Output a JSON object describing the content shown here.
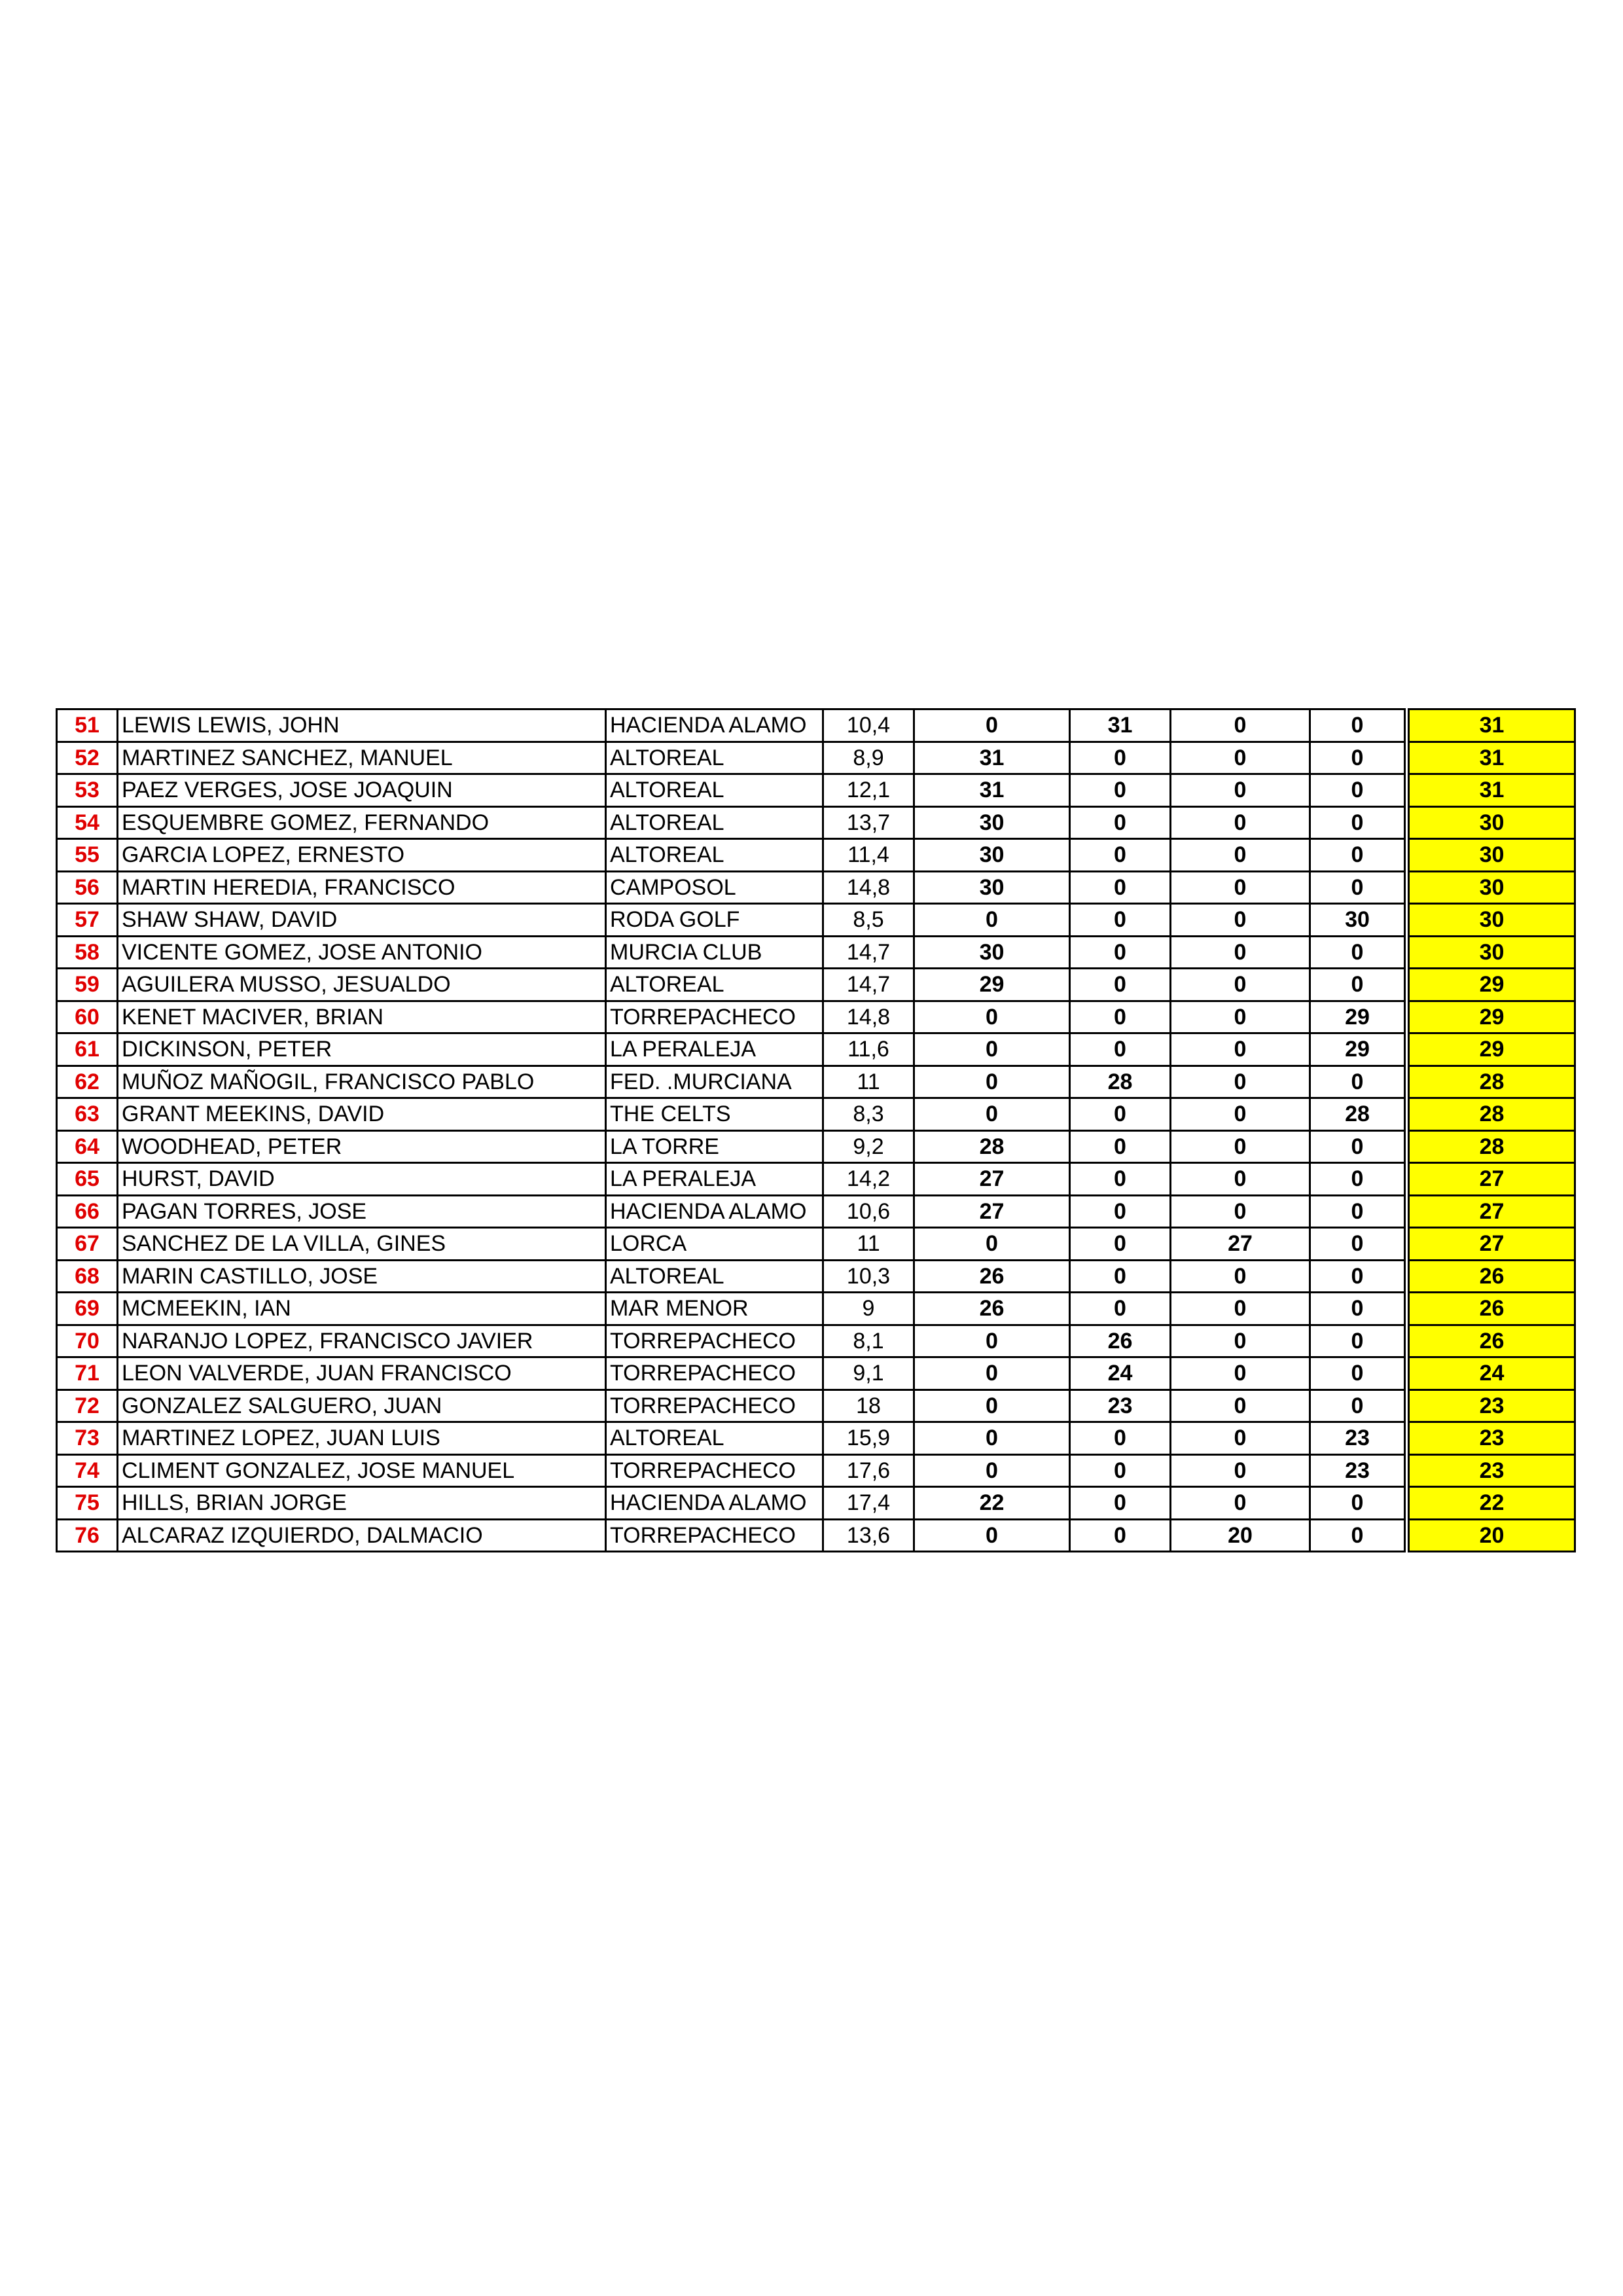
{
  "highlight_color": "#ffff00",
  "rank_color": "#e00000",
  "rows": [
    {
      "rank": "51",
      "name": "LEWIS LEWIS, JOHN",
      "club": "HACIENDA ALAMO",
      "hcp": "10,4",
      "s1": "0",
      "s2": "31",
      "s3": "0",
      "s4": "0",
      "total": "31"
    },
    {
      "rank": "52",
      "name": "MARTINEZ SANCHEZ, MANUEL",
      "club": "ALTOREAL",
      "hcp": "8,9",
      "s1": "31",
      "s2": "0",
      "s3": "0",
      "s4": "0",
      "total": "31"
    },
    {
      "rank": "53",
      "name": "PAEZ VERGES, JOSE JOAQUIN",
      "club": "ALTOREAL",
      "hcp": "12,1",
      "s1": "31",
      "s2": "0",
      "s3": "0",
      "s4": "0",
      "total": "31"
    },
    {
      "rank": "54",
      "name": "ESQUEMBRE GOMEZ, FERNANDO",
      "club": "ALTOREAL",
      "hcp": "13,7",
      "s1": "30",
      "s2": "0",
      "s3": "0",
      "s4": "0",
      "total": "30"
    },
    {
      "rank": "55",
      "name": "GARCIA LOPEZ, ERNESTO",
      "club": "ALTOREAL",
      "hcp": "11,4",
      "s1": "30",
      "s2": "0",
      "s3": "0",
      "s4": "0",
      "total": "30"
    },
    {
      "rank": "56",
      "name": "MARTIN HEREDIA, FRANCISCO",
      "club": "CAMPOSOL",
      "hcp": "14,8",
      "s1": "30",
      "s2": "0",
      "s3": "0",
      "s4": "0",
      "total": "30"
    },
    {
      "rank": "57",
      "name": "SHAW SHAW, DAVID",
      "club": "RODA GOLF",
      "hcp": "8,5",
      "s1": "0",
      "s2": "0",
      "s3": "0",
      "s4": "30",
      "total": "30"
    },
    {
      "rank": "58",
      "name": "VICENTE GOMEZ, JOSE ANTONIO",
      "club": "MURCIA CLUB",
      "hcp": "14,7",
      "s1": "30",
      "s2": "0",
      "s3": "0",
      "s4": "0",
      "total": "30"
    },
    {
      "rank": "59",
      "name": "AGUILERA MUSSO, JESUALDO",
      "club": "ALTOREAL",
      "hcp": "14,7",
      "s1": "29",
      "s2": "0",
      "s3": "0",
      "s4": "0",
      "total": "29"
    },
    {
      "rank": "60",
      "name": "KENET MACIVER, BRIAN",
      "club": "TORREPACHECO",
      "hcp": "14,8",
      "s1": "0",
      "s2": "0",
      "s3": "0",
      "s4": "29",
      "total": "29"
    },
    {
      "rank": "61",
      "name": "DICKINSON, PETER",
      "club": "LA PERALEJA",
      "hcp": "11,6",
      "s1": "0",
      "s2": "0",
      "s3": "0",
      "s4": "29",
      "total": "29"
    },
    {
      "rank": "62",
      "name": "MUÑOZ MAÑOGIL, FRANCISCO PABLO",
      "club": "FED. .MURCIANA",
      "hcp": "11",
      "s1": "0",
      "s2": "28",
      "s3": "0",
      "s4": "0",
      "total": "28"
    },
    {
      "rank": "63",
      "name": "GRANT MEEKINS, DAVID",
      "club": "THE CELTS",
      "hcp": "8,3",
      "s1": "0",
      "s2": "0",
      "s3": "0",
      "s4": "28",
      "total": "28"
    },
    {
      "rank": "64",
      "name": "WOODHEAD, PETER",
      "club": "LA TORRE",
      "hcp": "9,2",
      "s1": "28",
      "s2": "0",
      "s3": "0",
      "s4": "0",
      "total": "28"
    },
    {
      "rank": "65",
      "name": "HURST, DAVID",
      "club": "LA PERALEJA",
      "hcp": "14,2",
      "s1": "27",
      "s2": "0",
      "s3": "0",
      "s4": "0",
      "total": "27"
    },
    {
      "rank": "66",
      "name": "PAGAN TORRES, JOSE",
      "club": "HACIENDA ALAMO",
      "hcp": "10,6",
      "s1": "27",
      "s2": "0",
      "s3": "0",
      "s4": "0",
      "total": "27"
    },
    {
      "rank": "67",
      "name": "SANCHEZ DE LA VILLA, GINES",
      "club": "LORCA",
      "hcp": "11",
      "s1": "0",
      "s2": "0",
      "s3": "27",
      "s4": "0",
      "total": "27"
    },
    {
      "rank": "68",
      "name": "MARIN CASTILLO, JOSE",
      "club": "ALTOREAL",
      "hcp": "10,3",
      "s1": "26",
      "s2": "0",
      "s3": "0",
      "s4": "0",
      "total": "26"
    },
    {
      "rank": "69",
      "name": "MCMEEKIN, IAN",
      "club": "MAR MENOR",
      "hcp": "9",
      "s1": "26",
      "s2": "0",
      "s3": "0",
      "s4": "0",
      "total": "26"
    },
    {
      "rank": "70",
      "name": "NARANJO LOPEZ, FRANCISCO JAVIER",
      "club": "TORREPACHECO",
      "hcp": "8,1",
      "s1": "0",
      "s2": "26",
      "s3": "0",
      "s4": "0",
      "total": "26"
    },
    {
      "rank": "71",
      "name": "LEON VALVERDE, JUAN FRANCISCO",
      "club": "TORREPACHECO",
      "hcp": "9,1",
      "s1": "0",
      "s2": "24",
      "s3": "0",
      "s4": "0",
      "total": "24"
    },
    {
      "rank": "72",
      "name": "GONZALEZ SALGUERO, JUAN",
      "club": "TORREPACHECO",
      "hcp": "18",
      "s1": "0",
      "s2": "23",
      "s3": "0",
      "s4": "0",
      "total": "23"
    },
    {
      "rank": "73",
      "name": "MARTINEZ LOPEZ, JUAN LUIS",
      "club": "ALTOREAL",
      "hcp": "15,9",
      "s1": "0",
      "s2": "0",
      "s3": "0",
      "s4": "23",
      "total": "23"
    },
    {
      "rank": "74",
      "name": "CLIMENT GONZALEZ, JOSE MANUEL",
      "club": "TORREPACHECO",
      "hcp": "17,6",
      "s1": "0",
      "s2": "0",
      "s3": "0",
      "s4": "23",
      "total": "23"
    },
    {
      "rank": "75",
      "name": "HILLS, BRIAN JORGE",
      "club": "HACIENDA ALAMO",
      "hcp": "17,4",
      "s1": "22",
      "s2": "0",
      "s3": "0",
      "s4": "0",
      "total": "22"
    },
    {
      "rank": "76",
      "name": "ALCARAZ IZQUIERDO, DALMACIO",
      "club": "TORREPACHECO",
      "hcp": "13,6",
      "s1": "0",
      "s2": "0",
      "s3": "20",
      "s4": "0",
      "total": "20"
    }
  ]
}
